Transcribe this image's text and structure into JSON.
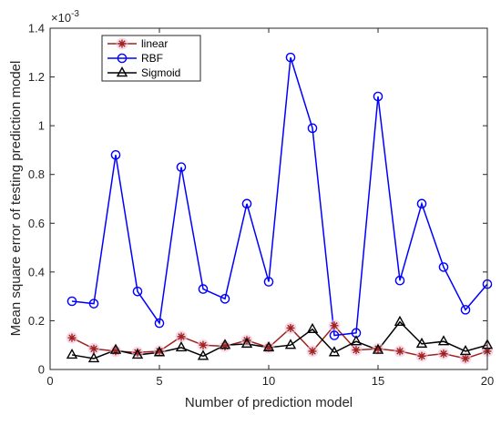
{
  "chart_data": {
    "type": "line",
    "title": "",
    "xlabel": "Number of prediction model",
    "ylabel": "Mean square error of testing prediction model",
    "y_exponent_label": "×10",
    "y_exponent_power": "-3",
    "xlim": [
      0,
      20
    ],
    "ylim": [
      0,
      1.4
    ],
    "y_scale_note": "values are x10^-3",
    "grid": false,
    "legend_position": "top-left",
    "x_ticks": [
      "0",
      "5",
      "10",
      "15",
      "20"
    ],
    "y_ticks": [
      "0",
      "0.2",
      "0.4",
      "0.6",
      "0.8",
      "1",
      "1.2",
      "1.4"
    ],
    "x_tick_values": [
      0,
      5,
      10,
      15,
      20
    ],
    "y_tick_values": [
      0,
      0.2,
      0.4,
      0.6,
      0.8,
      1.0,
      1.2,
      1.4
    ],
    "x": [
      1,
      2,
      3,
      4,
      5,
      6,
      7,
      8,
      9,
      10,
      11,
      12,
      13,
      14,
      15,
      16,
      17,
      18,
      19,
      20
    ],
    "series": [
      {
        "name": "linear",
        "color": "#a0221e",
        "marker": "star",
        "values": [
          0.13,
          0.085,
          0.075,
          0.07,
          0.075,
          0.135,
          0.1,
          0.095,
          0.12,
          0.09,
          0.17,
          0.075,
          0.18,
          0.08,
          0.085,
          0.075,
          0.055,
          0.065,
          0.045,
          0.075
        ]
      },
      {
        "name": "RBF",
        "color": "#0000ff",
        "marker": "circle",
        "values": [
          0.28,
          0.27,
          0.88,
          0.32,
          0.19,
          0.83,
          0.33,
          0.29,
          0.68,
          0.36,
          1.28,
          0.99,
          0.14,
          0.15,
          1.12,
          0.365,
          0.68,
          0.42,
          0.245,
          0.35
        ]
      },
      {
        "name": "Sigmoid",
        "color": "#000000",
        "marker": "triangle",
        "values": [
          0.06,
          0.045,
          0.08,
          0.06,
          0.07,
          0.09,
          0.055,
          0.1,
          0.105,
          0.09,
          0.1,
          0.165,
          0.07,
          0.115,
          0.08,
          0.195,
          0.105,
          0.115,
          0.075,
          0.1
        ]
      }
    ]
  }
}
